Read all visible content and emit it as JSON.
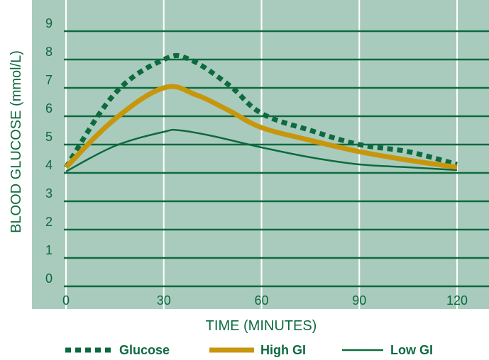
{
  "chart_data": {
    "type": "line",
    "title": "",
    "xlabel": "TIME (MINUTES)",
    "ylabel": "BLOOD GLUCOSE (mmol/L)",
    "xlim": [
      0,
      120
    ],
    "ylim": [
      0,
      9
    ],
    "x_ticks": [
      "0",
      "30",
      "60",
      "90",
      "120"
    ],
    "y_ticks": [
      "0",
      "1",
      "2",
      "3",
      "4",
      "5",
      "6",
      "7",
      "8",
      "9"
    ],
    "grid": true,
    "legend_position": "bottom",
    "colors": {
      "background": "#a9cbbd",
      "grid_horizontal": "#0d6a3f",
      "grid_vertical": "#ffffff",
      "text": "#0d6a3f",
      "glucose": "#0d6a3f",
      "high_gi": "#c8960c",
      "low_gi": "#0d6a3f"
    },
    "series": [
      {
        "name": "Glucose",
        "style": "dotted-thick",
        "x": [
          0,
          15,
          30,
          38,
          50,
          60,
          75,
          90,
          105,
          120
        ],
        "y": [
          4.2,
          6.8,
          8.0,
          8.0,
          7.1,
          6.1,
          5.5,
          5.0,
          4.75,
          4.3
        ]
      },
      {
        "name": "High GI",
        "style": "solid-thick",
        "x": [
          0,
          15,
          30,
          40,
          50,
          60,
          75,
          90,
          105,
          120
        ],
        "y": [
          4.2,
          5.9,
          7.0,
          6.75,
          6.2,
          5.6,
          5.15,
          4.75,
          4.45,
          4.2
        ]
      },
      {
        "name": "Low GI",
        "style": "solid-thin",
        "x": [
          0,
          15,
          30,
          35,
          45,
          60,
          75,
          90,
          105,
          120
        ],
        "y": [
          4.05,
          4.95,
          5.45,
          5.5,
          5.3,
          4.9,
          4.55,
          4.3,
          4.2,
          4.1
        ]
      }
    ]
  }
}
